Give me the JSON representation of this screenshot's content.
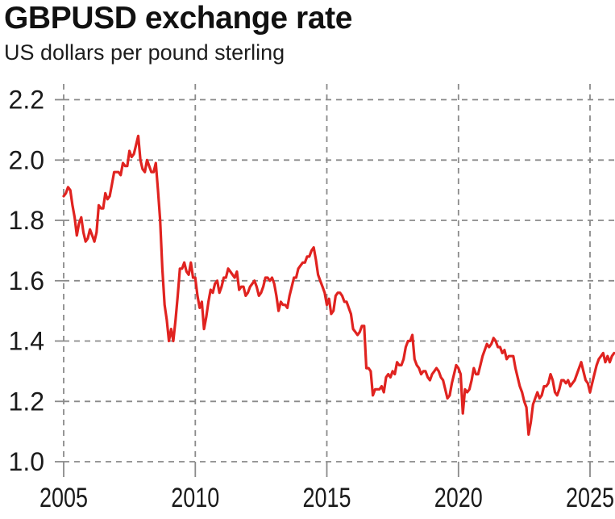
{
  "header": {
    "title": "GBPUSD exchange rate",
    "subtitle": "US dollars per pound sterling"
  },
  "chart_data": {
    "type": "line",
    "title": "GBPUSD exchange rate",
    "subtitle": "US dollars per pound sterling",
    "xlabel": "",
    "ylabel": "US dollars per pound sterling",
    "xlim": [
      2005,
      2025.95
    ],
    "ylim": [
      1.0,
      2.25
    ],
    "x_ticks": [
      2005,
      2010,
      2015,
      2020,
      2025
    ],
    "y_ticks": [
      2.2,
      2.0,
      1.8,
      1.6,
      1.4,
      1.2,
      1.0
    ],
    "y_tick_labels": [
      "2.2",
      "2.0",
      "1.8",
      "1.6",
      "1.4",
      "1.2",
      "1.0"
    ],
    "grid": "dashed horizontal and vertical",
    "legend": "none",
    "colors": {
      "line": "#e02320",
      "grid": "#8a8a8a",
      "text": "#1a1a1a",
      "background": "#ffffff"
    },
    "series": [
      {
        "name": "GBPUSD",
        "unit": "US dollars per pound sterling",
        "frequency": "monthly",
        "x_start": 2005.0,
        "x_step": 0.0833333,
        "values": [
          1.88,
          1.89,
          1.91,
          1.9,
          1.85,
          1.81,
          1.75,
          1.79,
          1.81,
          1.76,
          1.73,
          1.74,
          1.77,
          1.75,
          1.73,
          1.76,
          1.85,
          1.84,
          1.84,
          1.89,
          1.87,
          1.88,
          1.92,
          1.96,
          1.96,
          1.96,
          1.95,
          1.99,
          1.98,
          1.98,
          2.03,
          2.01,
          2.02,
          2.05,
          2.08,
          2.0,
          1.97,
          1.96,
          2.0,
          1.98,
          1.96,
          1.96,
          1.99,
          1.9,
          1.8,
          1.64,
          1.52,
          1.47,
          1.4,
          1.44,
          1.4,
          1.47,
          1.55,
          1.64,
          1.64,
          1.66,
          1.63,
          1.62,
          1.66,
          1.61,
          1.61,
          1.55,
          1.51,
          1.53,
          1.44,
          1.48,
          1.53,
          1.57,
          1.56,
          1.59,
          1.6,
          1.56,
          1.58,
          1.61,
          1.61,
          1.64,
          1.63,
          1.62,
          1.61,
          1.63,
          1.57,
          1.58,
          1.58,
          1.55,
          1.56,
          1.58,
          1.59,
          1.6,
          1.58,
          1.55,
          1.56,
          1.58,
          1.61,
          1.61,
          1.6,
          1.61,
          1.59,
          1.55,
          1.5,
          1.53,
          1.52,
          1.52,
          1.51,
          1.55,
          1.58,
          1.61,
          1.61,
          1.64,
          1.65,
          1.66,
          1.66,
          1.68,
          1.68,
          1.7,
          1.71,
          1.67,
          1.62,
          1.6,
          1.58,
          1.56,
          1.52,
          1.54,
          1.49,
          1.5,
          1.55,
          1.56,
          1.56,
          1.55,
          1.53,
          1.53,
          1.51,
          1.49,
          1.44,
          1.43,
          1.42,
          1.43,
          1.45,
          1.45,
          1.31,
          1.31,
          1.3,
          1.22,
          1.24,
          1.24,
          1.24,
          1.25,
          1.23,
          1.28,
          1.29,
          1.28,
          1.3,
          1.29,
          1.33,
          1.32,
          1.32,
          1.34,
          1.38,
          1.4,
          1.4,
          1.42,
          1.34,
          1.32,
          1.31,
          1.29,
          1.3,
          1.3,
          1.28,
          1.27,
          1.29,
          1.3,
          1.31,
          1.3,
          1.28,
          1.27,
          1.24,
          1.21,
          1.22,
          1.26,
          1.29,
          1.32,
          1.31,
          1.29,
          1.16,
          1.24,
          1.23,
          1.24,
          1.27,
          1.31,
          1.29,
          1.29,
          1.32,
          1.35,
          1.37,
          1.39,
          1.38,
          1.39,
          1.41,
          1.4,
          1.38,
          1.38,
          1.36,
          1.37,
          1.34,
          1.35,
          1.35,
          1.35,
          1.31,
          1.28,
          1.25,
          1.23,
          1.2,
          1.18,
          1.09,
          1.13,
          1.19,
          1.21,
          1.23,
          1.21,
          1.22,
          1.25,
          1.25,
          1.26,
          1.29,
          1.27,
          1.23,
          1.22,
          1.24,
          1.27,
          1.27,
          1.26,
          1.27,
          1.25,
          1.26,
          1.27,
          1.29,
          1.31,
          1.33,
          1.3,
          1.27,
          1.26,
          1.23,
          1.26,
          1.29,
          1.32,
          1.34,
          1.35,
          1.36,
          1.33,
          1.35,
          1.33,
          1.35,
          1.36
        ]
      }
    ]
  }
}
